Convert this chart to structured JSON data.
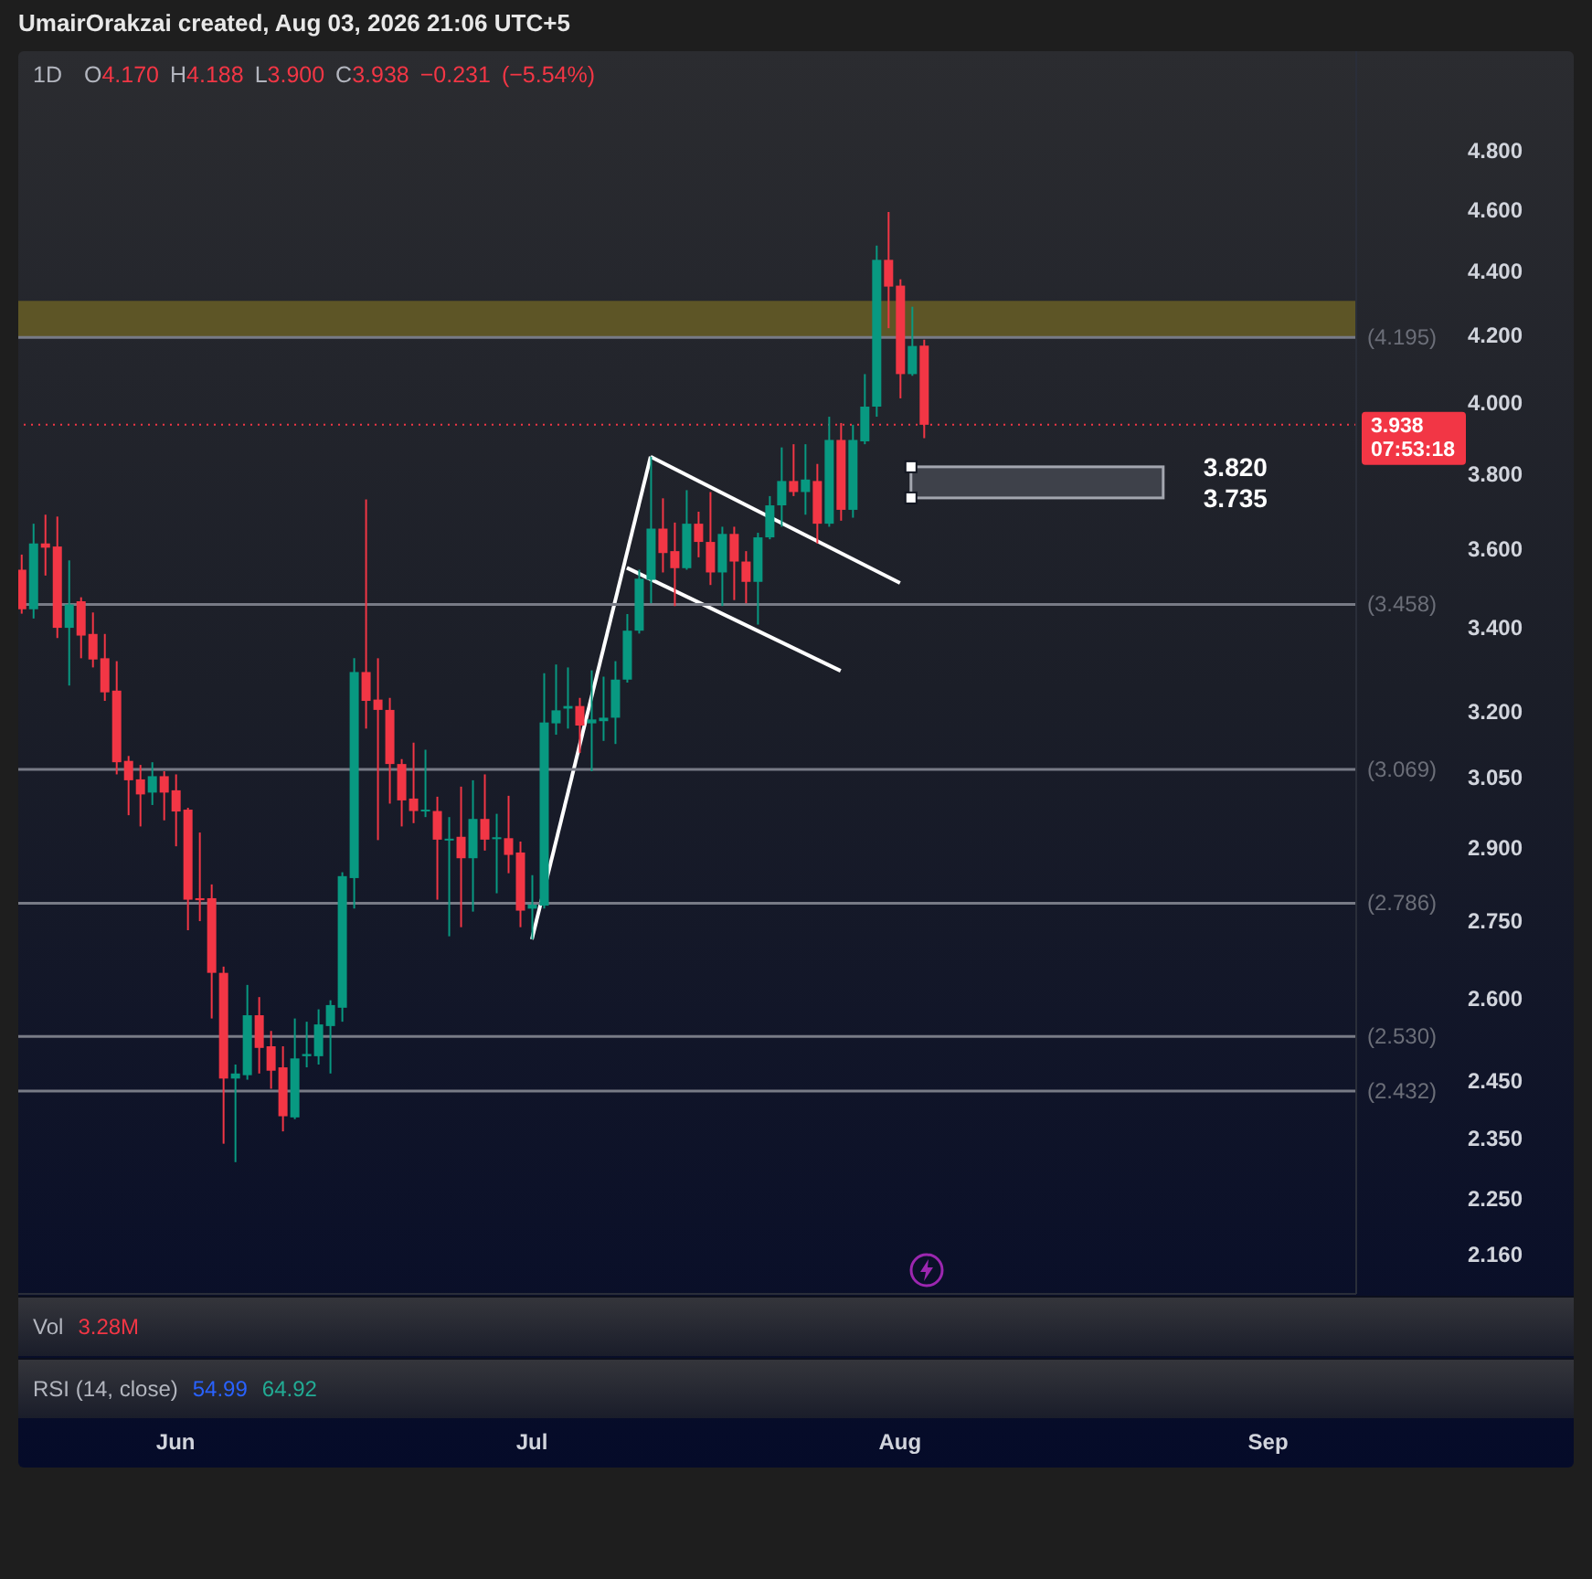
{
  "chart_data": {
    "type": "candlestick",
    "title": "1D",
    "subtitle": "O4.170 H4.188 L3.900 C3.938 −0.231 (−5.54%)",
    "x": [
      "2026-05-19",
      "2026-05-20",
      "2026-05-21",
      "2026-05-22",
      "2026-05-23",
      "2026-05-24",
      "2026-05-25",
      "2026-05-26",
      "2026-05-27",
      "2026-05-28",
      "2026-05-29",
      "2026-05-30",
      "2026-05-31",
      "2026-06-01",
      "2026-06-02",
      "2026-06-03",
      "2026-06-04",
      "2026-06-05",
      "2026-06-06",
      "2026-06-07",
      "2026-06-08",
      "2026-06-09",
      "2026-06-10",
      "2026-06-11",
      "2026-06-12",
      "2026-06-13",
      "2026-06-14",
      "2026-06-15",
      "2026-06-16",
      "2026-06-17",
      "2026-06-18",
      "2026-06-19",
      "2026-06-20",
      "2026-06-21",
      "2026-06-22",
      "2026-06-23",
      "2026-06-24",
      "2026-06-25",
      "2026-06-26",
      "2026-06-27",
      "2026-06-28",
      "2026-06-29",
      "2026-06-30",
      "2026-07-01",
      "2026-07-02",
      "2026-07-03",
      "2026-07-04",
      "2026-07-05",
      "2026-07-06",
      "2026-07-07",
      "2026-07-08",
      "2026-07-09",
      "2026-07-10",
      "2026-07-11",
      "2026-07-12",
      "2026-07-13",
      "2026-07-14",
      "2026-07-15",
      "2026-07-16",
      "2026-07-17",
      "2026-07-18",
      "2026-07-19",
      "2026-07-20",
      "2026-07-21",
      "2026-07-22",
      "2026-07-23",
      "2026-07-24",
      "2026-07-25",
      "2026-07-26",
      "2026-07-27",
      "2026-07-28",
      "2026-07-29",
      "2026-07-30",
      "2026-07-31",
      "2026-08-01",
      "2026-08-02",
      "2026-08-03"
    ],
    "ohlc": [
      [
        3.546,
        3.585,
        3.435,
        3.446
      ],
      [
        3.446,
        3.666,
        3.423,
        3.614
      ],
      [
        3.614,
        3.69,
        3.531,
        3.603
      ],
      [
        3.606,
        3.685,
        3.375,
        3.4
      ],
      [
        3.4,
        3.57,
        3.261,
        3.458
      ],
      [
        3.466,
        3.476,
        3.326,
        3.381
      ],
      [
        3.385,
        3.438,
        3.304,
        3.323
      ],
      [
        3.326,
        3.385,
        3.225,
        3.245
      ],
      [
        3.249,
        3.319,
        3.058,
        3.085
      ],
      [
        3.088,
        3.099,
        2.969,
        3.045
      ],
      [
        3.047,
        3.079,
        2.945,
        3.014
      ],
      [
        3.018,
        3.085,
        2.991,
        3.054
      ],
      [
        3.054,
        3.065,
        2.958,
        3.018
      ],
      [
        3.023,
        3.058,
        2.903,
        2.977
      ],
      [
        2.981,
        2.985,
        2.732,
        2.793
      ],
      [
        2.796,
        2.932,
        2.75,
        2.792
      ],
      [
        2.796,
        2.824,
        2.563,
        2.649
      ],
      [
        2.649,
        2.661,
        2.341,
        2.454
      ],
      [
        2.454,
        2.479,
        2.31,
        2.463
      ],
      [
        2.46,
        2.626,
        2.452,
        2.569
      ],
      [
        2.569,
        2.603,
        2.463,
        2.509
      ],
      [
        2.512,
        2.54,
        2.436,
        2.468
      ],
      [
        2.474,
        2.512,
        2.362,
        2.388
      ],
      [
        2.386,
        2.563,
        2.383,
        2.49
      ],
      [
        2.494,
        2.557,
        2.474,
        2.498
      ],
      [
        2.494,
        2.58,
        2.479,
        2.552
      ],
      [
        2.549,
        2.597,
        2.463,
        2.588
      ],
      [
        2.583,
        2.849,
        2.557,
        2.841
      ],
      [
        2.837,
        3.326,
        2.775,
        3.293
      ],
      [
        3.293,
        3.731,
        3.161,
        3.225
      ],
      [
        3.228,
        3.326,
        2.916,
        3.204
      ],
      [
        3.204,
        3.232,
        2.994,
        3.081
      ],
      [
        3.081,
        3.092,
        2.945,
        3.001
      ],
      [
        3.005,
        3.129,
        2.952,
        2.978
      ],
      [
        2.978,
        3.113,
        2.965,
        2.981
      ],
      [
        2.978,
        3.009,
        2.793,
        2.917
      ],
      [
        2.917,
        2.965,
        2.72,
        2.919
      ],
      [
        2.923,
        3.031,
        2.738,
        2.878
      ],
      [
        2.878,
        3.045,
        2.769,
        2.961
      ],
      [
        2.961,
        3.058,
        2.894,
        2.917
      ],
      [
        2.918,
        2.972,
        2.806,
        2.922
      ],
      [
        2.92,
        3.011,
        2.847,
        2.885
      ],
      [
        2.89,
        2.913,
        2.738,
        2.771
      ],
      [
        2.775,
        2.843,
        2.714,
        2.783
      ],
      [
        2.781,
        3.29,
        2.775,
        3.175
      ],
      [
        3.173,
        3.311,
        3.147,
        3.203
      ],
      [
        3.207,
        3.304,
        3.161,
        3.213
      ],
      [
        3.213,
        3.232,
        3.106,
        3.168
      ],
      [
        3.173,
        3.297,
        3.065,
        3.182
      ],
      [
        3.178,
        3.282,
        3.133,
        3.186
      ],
      [
        3.186,
        3.319,
        3.126,
        3.275
      ],
      [
        3.275,
        3.434,
        3.268,
        3.393
      ],
      [
        3.393,
        3.546,
        3.386,
        3.523
      ],
      [
        3.52,
        3.848,
        3.461,
        3.653
      ],
      [
        3.653,
        3.734,
        3.539,
        3.589
      ],
      [
        3.594,
        3.669,
        3.454,
        3.55
      ],
      [
        3.55,
        3.756,
        3.546,
        3.666
      ],
      [
        3.666,
        3.698,
        3.578,
        3.618
      ],
      [
        3.618,
        3.751,
        3.507,
        3.539
      ],
      [
        3.539,
        3.658,
        3.454,
        3.639
      ],
      [
        3.639,
        3.658,
        3.469,
        3.567
      ],
      [
        3.567,
        3.594,
        3.461,
        3.515
      ],
      [
        3.515,
        3.642,
        3.408,
        3.63
      ],
      [
        3.63,
        3.74,
        3.625,
        3.715
      ],
      [
        3.715,
        3.874,
        3.658,
        3.781
      ],
      [
        3.781,
        3.883,
        3.74,
        3.751
      ],
      [
        3.751,
        3.883,
        3.69,
        3.785
      ],
      [
        3.781,
        3.828,
        3.614,
        3.666
      ],
      [
        3.666,
        3.961,
        3.658,
        3.895
      ],
      [
        3.895,
        3.943,
        3.674,
        3.703
      ],
      [
        3.703,
        3.938,
        3.682,
        3.895
      ],
      [
        3.891,
        4.085,
        3.883,
        3.99
      ],
      [
        3.99,
        4.483,
        3.961,
        4.437
      ],
      [
        4.437,
        4.593,
        4.223,
        4.352
      ],
      [
        4.355,
        4.375,
        4.014,
        4.085
      ],
      [
        4.085,
        4.289,
        4.08,
        4.169
      ],
      [
        4.17,
        4.188,
        3.9,
        3.938
      ]
    ],
    "colors": [
      "#f23645",
      "#089981",
      "#f23645",
      "#f23645",
      "#089981",
      "#f23645",
      "#f23645",
      "#f23645",
      "#f23645",
      "#f23645",
      "#f23645",
      "#089981",
      "#f23645",
      "#f23645",
      "#f23645",
      "#f23645",
      "#f23645",
      "#f23645",
      "#089981",
      "#089981",
      "#f23645",
      "#f23645",
      "#f23645",
      "#089981",
      "#089981",
      "#089981",
      "#089981",
      "#089981",
      "#089981",
      "#f23645",
      "#f23645",
      "#f23645",
      "#f23645",
      "#f23645",
      "#089981",
      "#f23645",
      "#089981",
      "#f23645",
      "#089981",
      "#f23645",
      "#089981",
      "#f23645",
      "#f23645",
      "#089981",
      "#089981",
      "#089981",
      "#089981",
      "#f23645",
      "#089981",
      "#089981",
      "#089981",
      "#089981",
      "#089981",
      "#089981",
      "#f23645",
      "#f23645",
      "#089981",
      "#f23645",
      "#f23645",
      "#089981",
      "#f23645",
      "#f23645",
      "#089981",
      "#089981",
      "#089981",
      "#f23645",
      "#089981",
      "#f23645",
      "#089981",
      "#f23645",
      "#089981",
      "#089981",
      "#089981",
      "#f23645",
      "#f23645",
      "#089981",
      "#f23645"
    ],
    "series": [
      {
        "type": "line",
        "x": [
          "2026-07-01",
          "2026-07-11"
        ],
        "values": [
          2.714,
          3.848
        ],
        "color": "#ffffff"
      },
      {
        "type": "line",
        "x": [
          "2026-07-11",
          "2026-08-01"
        ],
        "values": [
          3.848,
          3.512
        ],
        "color": "#ffffff"
      },
      {
        "type": "line",
        "x": [
          "2026-07-09",
          "2026-07-27"
        ],
        "values": [
          3.551,
          3.296
        ],
        "color": "#ffffff"
      }
    ],
    "xlim": [
      "2026-05-18T18:00",
      "2026-09-08T10:00"
    ],
    "xticks": [
      {
        "value": "2026-06-01",
        "label": "Jun"
      },
      {
        "value": "2026-07-01",
        "label": "Jul"
      },
      {
        "value": "2026-08-01",
        "label": "Aug"
      },
      {
        "value": "2026-09-01",
        "label": "Sep"
      }
    ],
    "ylim": [
      2.1,
      5.16
    ],
    "yticks": [
      {
        "value": 2.16,
        "label": "2.160"
      },
      {
        "value": 2.25,
        "label": "2.250"
      },
      {
        "value": 2.35,
        "label": "2.350"
      },
      {
        "value": 2.45,
        "label": "2.450"
      },
      {
        "value": 2.6,
        "label": "2.600"
      },
      {
        "value": 2.75,
        "label": "2.750"
      },
      {
        "value": 2.9,
        "label": "2.900"
      },
      {
        "value": 3.05,
        "label": "3.050"
      },
      {
        "value": 3.2,
        "label": "3.200"
      },
      {
        "value": 3.4,
        "label": "3.400"
      },
      {
        "value": 3.6,
        "label": "3.600"
      },
      {
        "value": 3.8,
        "label": "3.800"
      },
      {
        "value": 4,
        "label": "4.000"
      },
      {
        "value": 4.2,
        "label": "4.200"
      },
      {
        "value": 4.4,
        "label": "4.400"
      },
      {
        "value": 4.6,
        "label": "4.600"
      },
      {
        "value": 4.8,
        "label": "4.800"
      }
    ],
    "log": true,
    "ref_lines": [
      {
        "axis": "y",
        "value": 4.195,
        "label": "(4.195)"
      },
      {
        "axis": "y",
        "value": 3.458,
        "label": "(3.458)"
      },
      {
        "axis": "y",
        "value": 3.069,
        "label": "(3.069)"
      },
      {
        "axis": "y",
        "value": 2.786,
        "label": "(2.786)"
      },
      {
        "axis": "y",
        "value": 2.53,
        "label": "(2.530)"
      },
      {
        "axis": "y",
        "value": 2.432,
        "label": "(2.432)"
      },
      {
        "axis": "y",
        "value": 3.938,
        "label": "3.938",
        "color": "#f23645",
        "line_style": "dotted"
      }
    ],
    "bands": [
      {
        "axis": "y",
        "from": 4.195,
        "to": 4.307,
        "color": "#5d5526"
      },
      {
        "axis": "y",
        "from": 3.735,
        "to": 3.82,
        "color": "#3e414a"
      }
    ],
    "annotations": [
      "UmairOrakzai created, Aug 03, 2026 21:06 UTC+5",
      "Vol",
      "3.28M",
      "RSI (14, close)",
      "54.99",
      "64.92",
      "07:53:18",
      "3.820",
      "3.735"
    ]
  }
}
